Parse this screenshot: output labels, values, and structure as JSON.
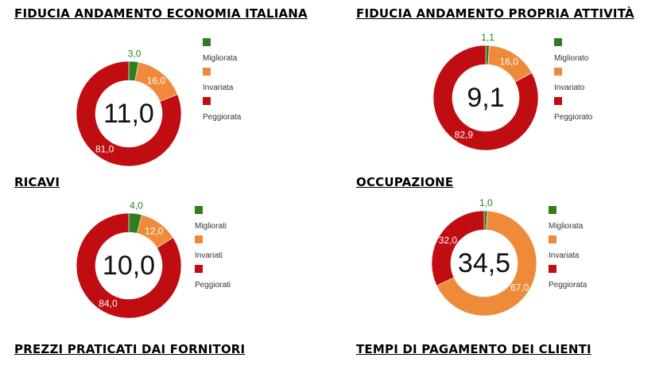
{
  "titles": {
    "fiducia_economia": "FIDUCIA ANDAMENTO ECONOMIA ITALIANA",
    "fiducia_attivita": "FIDUCIA ANDAMENTO PROPRIA ATTIVITÀ",
    "ricavi": "RICAVI",
    "occupazione": "OCCUPAZIONE",
    "prezzi": "PREZZI PRATICATI DAI FORNITORI",
    "tempi": "TEMPI DI PAGAMENTO DEI CLIENTI"
  },
  "colors": {
    "green": "#2e7d1e",
    "orange": "#ef8a3a",
    "red": "#c00d12"
  },
  "chart_data": [
    {
      "type": "pie",
      "title": "FIDUCIA ANDAMENTO ECONOMIA ITALIANA",
      "center_label": "11,0",
      "categories": [
        "Migliorata",
        "Invariata",
        "Peggiorata"
      ],
      "values": [
        3.0,
        16.0,
        81.0
      ],
      "value_labels": [
        "3,0",
        "16,0",
        "81,0"
      ],
      "legend": "right"
    },
    {
      "type": "pie",
      "title": "FIDUCIA ANDAMENTO PROPRIA ATTIVITÀ",
      "center_label": "9,1",
      "categories": [
        "Migliorato",
        "Invariato",
        "Peggiorato"
      ],
      "values": [
        1.1,
        16.0,
        82.9
      ],
      "value_labels": [
        "1,1",
        "16,0",
        "82,9"
      ],
      "legend": "right"
    },
    {
      "type": "pie",
      "title": "RICAVI",
      "center_label": "10,0",
      "categories": [
        "Migliorati",
        "Invariati",
        "Peggiorati"
      ],
      "values": [
        4.0,
        12.0,
        84.0
      ],
      "value_labels": [
        "4,0",
        "12,0",
        "84,0"
      ],
      "legend": "right"
    },
    {
      "type": "pie",
      "title": "OCCUPAZIONE",
      "center_label": "34,5",
      "categories": [
        "Migliorata",
        "Invariata",
        "Peggiorata"
      ],
      "values": [
        1.0,
        67.0,
        32.0
      ],
      "value_labels": [
        "1,0",
        "67,0",
        "32,0"
      ],
      "legend": "right"
    }
  ]
}
